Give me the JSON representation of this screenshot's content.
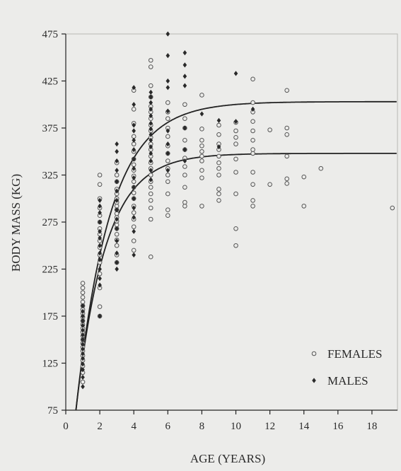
{
  "chart_data": {
    "type": "scatter",
    "xlabel": "AGE (YEARS)",
    "ylabel": "BODY MASS (KG)",
    "xlim": [
      0,
      19.5
    ],
    "ylim": [
      75,
      475
    ],
    "xticks": [
      0,
      2,
      4,
      6,
      8,
      10,
      12,
      14,
      16,
      18
    ],
    "yticks": [
      75,
      125,
      175,
      225,
      275,
      325,
      375,
      425,
      475
    ],
    "grid": false,
    "legend_position": "bottom-right",
    "series": [
      {
        "name": "FEMALES",
        "marker": "open-circle",
        "color": "#555555",
        "points": [
          [
            1,
            105
          ],
          [
            1,
            115
          ],
          [
            1,
            122
          ],
          [
            1,
            128
          ],
          [
            1,
            133
          ],
          [
            1,
            138
          ],
          [
            1,
            142
          ],
          [
            1,
            146
          ],
          [
            1,
            150
          ],
          [
            1,
            154
          ],
          [
            1,
            158
          ],
          [
            1,
            162
          ],
          [
            1,
            166
          ],
          [
            1,
            170
          ],
          [
            1,
            174
          ],
          [
            1,
            178
          ],
          [
            1,
            182
          ],
          [
            1,
            186
          ],
          [
            1,
            190
          ],
          [
            1,
            195
          ],
          [
            1,
            200
          ],
          [
            1,
            205
          ],
          [
            1,
            210
          ],
          [
            2,
            175
          ],
          [
            2,
            185
          ],
          [
            2,
            205
          ],
          [
            2,
            220
          ],
          [
            2,
            232
          ],
          [
            2,
            240
          ],
          [
            2,
            248
          ],
          [
            2,
            255
          ],
          [
            2,
            262
          ],
          [
            2,
            268
          ],
          [
            2,
            275
          ],
          [
            2,
            282
          ],
          [
            2,
            290
          ],
          [
            2,
            300
          ],
          [
            2,
            315
          ],
          [
            2,
            325
          ],
          [
            3,
            232
          ],
          [
            3,
            240
          ],
          [
            3,
            250
          ],
          [
            3,
            256
          ],
          [
            3,
            262
          ],
          [
            3,
            268
          ],
          [
            3,
            272
          ],
          [
            3,
            276
          ],
          [
            3,
            280
          ],
          [
            3,
            284
          ],
          [
            3,
            288
          ],
          [
            3,
            292
          ],
          [
            3,
            296
          ],
          [
            3,
            300
          ],
          [
            3,
            305
          ],
          [
            3,
            310
          ],
          [
            3,
            318
          ],
          [
            3,
            325
          ],
          [
            3,
            338
          ],
          [
            4,
            245
          ],
          [
            4,
            255
          ],
          [
            4,
            270
          ],
          [
            4,
            278
          ],
          [
            4,
            285
          ],
          [
            4,
            292
          ],
          [
            4,
            300
          ],
          [
            4,
            306
          ],
          [
            4,
            312
          ],
          [
            4,
            318
          ],
          [
            4,
            324
          ],
          [
            4,
            330
          ],
          [
            4,
            336
          ],
          [
            4,
            342
          ],
          [
            4,
            350
          ],
          [
            4,
            358
          ],
          [
            4,
            366
          ],
          [
            4,
            380
          ],
          [
            4,
            395
          ],
          [
            4,
            415
          ],
          [
            5,
            238
          ],
          [
            5,
            278
          ],
          [
            5,
            290
          ],
          [
            5,
            298
          ],
          [
            5,
            305
          ],
          [
            5,
            312
          ],
          [
            5,
            318
          ],
          [
            5,
            325
          ],
          [
            5,
            332
          ],
          [
            5,
            338
          ],
          [
            5,
            345
          ],
          [
            5,
            352
          ],
          [
            5,
            358
          ],
          [
            5,
            365
          ],
          [
            5,
            372
          ],
          [
            5,
            378
          ],
          [
            5,
            385
          ],
          [
            5,
            392
          ],
          [
            5,
            398
          ],
          [
            5,
            408
          ],
          [
            5,
            420
          ],
          [
            5,
            440
          ],
          [
            5,
            447
          ],
          [
            6,
            282
          ],
          [
            6,
            288
          ],
          [
            6,
            305
          ],
          [
            6,
            318
          ],
          [
            6,
            325
          ],
          [
            6,
            332
          ],
          [
            6,
            340
          ],
          [
            6,
            348
          ],
          [
            6,
            356
          ],
          [
            6,
            366
          ],
          [
            6,
            375
          ],
          [
            6,
            385
          ],
          [
            6,
            392
          ],
          [
            6,
            402
          ],
          [
            7,
            292
          ],
          [
            7,
            296
          ],
          [
            7,
            312
          ],
          [
            7,
            325
          ],
          [
            7,
            334
          ],
          [
            7,
            343
          ],
          [
            7,
            352
          ],
          [
            7,
            362
          ],
          [
            7,
            375
          ],
          [
            7,
            385
          ],
          [
            7,
            400
          ],
          [
            8,
            292
          ],
          [
            8,
            322
          ],
          [
            8,
            330
          ],
          [
            8,
            340
          ],
          [
            8,
            345
          ],
          [
            8,
            350
          ],
          [
            8,
            356
          ],
          [
            8,
            362
          ],
          [
            8,
            374
          ],
          [
            8,
            410
          ],
          [
            9,
            298
          ],
          [
            9,
            305
          ],
          [
            9,
            310
          ],
          [
            9,
            325
          ],
          [
            9,
            332
          ],
          [
            9,
            338
          ],
          [
            9,
            345
          ],
          [
            9,
            352
          ],
          [
            9,
            358
          ],
          [
            9,
            368
          ],
          [
            9,
            378
          ],
          [
            10,
            250
          ],
          [
            10,
            268
          ],
          [
            10,
            305
          ],
          [
            10,
            328
          ],
          [
            10,
            342
          ],
          [
            10,
            358
          ],
          [
            10,
            365
          ],
          [
            10,
            372
          ],
          [
            10,
            381
          ],
          [
            11,
            292
          ],
          [
            11,
            298
          ],
          [
            11,
            315
          ],
          [
            11,
            328
          ],
          [
            11,
            348
          ],
          [
            11,
            352
          ],
          [
            11,
            362
          ],
          [
            11,
            372
          ],
          [
            11,
            382
          ],
          [
            11,
            392
          ],
          [
            11,
            402
          ],
          [
            11,
            427
          ],
          [
            12,
            315
          ],
          [
            12,
            373
          ],
          [
            13,
            316
          ],
          [
            13,
            321
          ],
          [
            13,
            345
          ],
          [
            13,
            368
          ],
          [
            13,
            375
          ],
          [
            13,
            415
          ],
          [
            14,
            292
          ],
          [
            14,
            323
          ],
          [
            15,
            332
          ],
          [
            19.2,
            290
          ]
        ]
      },
      {
        "name": "MALES",
        "marker": "filled-diamond",
        "color": "#2a2a2a",
        "points": [
          [
            1,
            100
          ],
          [
            1,
            110
          ],
          [
            1,
            118
          ],
          [
            1,
            124
          ],
          [
            1,
            130
          ],
          [
            1,
            135
          ],
          [
            1,
            140
          ],
          [
            1,
            145
          ],
          [
            1,
            150
          ],
          [
            1,
            155
          ],
          [
            1,
            160
          ],
          [
            1,
            165
          ],
          [
            1,
            170
          ],
          [
            1,
            175
          ],
          [
            1,
            180
          ],
          [
            1,
            186
          ],
          [
            2,
            175
          ],
          [
            2,
            208
          ],
          [
            2,
            215
          ],
          [
            2,
            225
          ],
          [
            2,
            235
          ],
          [
            2,
            242
          ],
          [
            2,
            250
          ],
          [
            2,
            258
          ],
          [
            2,
            265
          ],
          [
            2,
            275
          ],
          [
            2,
            285
          ],
          [
            2,
            292
          ],
          [
            2,
            298
          ],
          [
            3,
            225
          ],
          [
            3,
            232
          ],
          [
            3,
            242
          ],
          [
            3,
            255
          ],
          [
            3,
            268
          ],
          [
            3,
            278
          ],
          [
            3,
            288
          ],
          [
            3,
            298
          ],
          [
            3,
            308
          ],
          [
            3,
            318
          ],
          [
            3,
            330
          ],
          [
            3,
            340
          ],
          [
            3,
            350
          ],
          [
            3,
            358
          ],
          [
            4,
            240
          ],
          [
            4,
            265
          ],
          [
            4,
            280
          ],
          [
            4,
            290
          ],
          [
            4,
            300
          ],
          [
            4,
            312
          ],
          [
            4,
            322
          ],
          [
            4,
            332
          ],
          [
            4,
            342
          ],
          [
            4,
            352
          ],
          [
            4,
            362
          ],
          [
            4,
            372
          ],
          [
            4,
            378
          ],
          [
            4,
            400
          ],
          [
            4,
            418
          ],
          [
            5,
            320
          ],
          [
            5,
            330
          ],
          [
            5,
            340
          ],
          [
            5,
            348
          ],
          [
            5,
            355
          ],
          [
            5,
            362
          ],
          [
            5,
            368
          ],
          [
            5,
            374
          ],
          [
            5,
            380
          ],
          [
            5,
            388
          ],
          [
            5,
            395
          ],
          [
            5,
            402
          ],
          [
            5,
            408
          ],
          [
            5,
            413
          ],
          [
            6,
            330
          ],
          [
            6,
            348
          ],
          [
            6,
            358
          ],
          [
            6,
            372
          ],
          [
            6,
            393
          ],
          [
            6,
            418
          ],
          [
            6,
            425
          ],
          [
            6,
            452
          ],
          [
            6,
            475
          ],
          [
            7,
            340
          ],
          [
            7,
            352
          ],
          [
            7,
            375
          ],
          [
            7,
            420
          ],
          [
            7,
            430
          ],
          [
            7,
            442
          ],
          [
            7,
            455
          ],
          [
            8,
            390
          ],
          [
            9,
            355
          ],
          [
            9,
            383
          ],
          [
            10,
            382
          ],
          [
            10,
            433
          ],
          [
            11,
            395
          ]
        ]
      }
    ],
    "fit_curves": [
      {
        "asymptote": 403,
        "start": [
          0.6,
          75
        ],
        "rate": 0.5
      },
      {
        "asymptote": 348,
        "start": [
          0.6,
          75
        ],
        "rate": 0.58
      }
    ]
  }
}
